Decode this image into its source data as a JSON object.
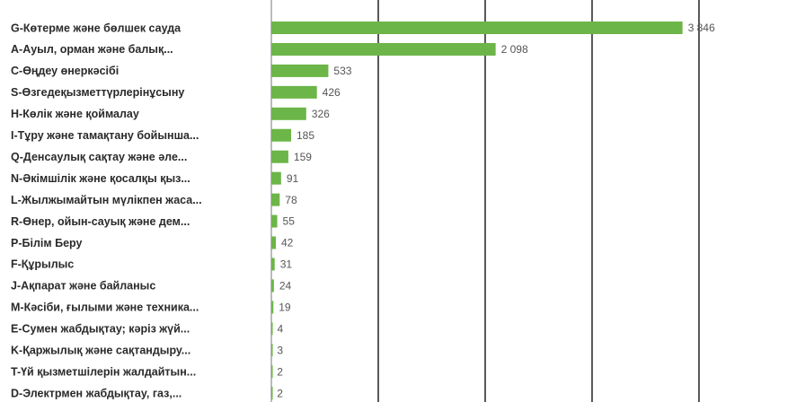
{
  "chart_data": {
    "type": "hbar",
    "categories": [
      "G-Көтерме және бөлшек сауда",
      "A-Ауыл, орман және балық...",
      "C-Өңдеу өнеркәсібі",
      "S-Өзгедеқызметтүрлерінұсыну",
      "H-Көлік және қоймалау",
      "I-Тұру және тамақтану бойынша...",
      "Q-Денсаулық сақтау және әле...",
      "N-Әкімшілік және қосалқы қыз...",
      "L-Жылжымайтын мүлікпен жаса...",
      "R-Өнер, ойын-сауық және дем...",
      "P-Білім Беру",
      "F-Құрылыс",
      "J-Ақпарат және байланыс",
      "M-Кәсіби, ғылыми және техника...",
      "E-Сумен жабдықтау; кәріз жүй...",
      "K-Қаржылық және сақтандыру...",
      "T-Үй қызметшілерін жалдайтын...",
      "D-Электрмен жабдықтау, газ,..."
    ],
    "values": [
      3846,
      2098,
      533,
      426,
      326,
      185,
      159,
      91,
      78,
      55,
      42,
      31,
      24,
      19,
      4,
      3,
      2,
      2
    ],
    "value_labels": [
      "3 846",
      "2 098",
      "533",
      "426",
      "326",
      "185",
      "159",
      "91",
      "78",
      "55",
      "42",
      "31",
      "24",
      "19",
      "4",
      "3",
      "2",
      "2"
    ],
    "color": "#6cb548",
    "xlim": [
      0,
      4900
    ],
    "xticks": [
      0,
      1000,
      2000,
      3000,
      4000
    ],
    "grid": true
  }
}
